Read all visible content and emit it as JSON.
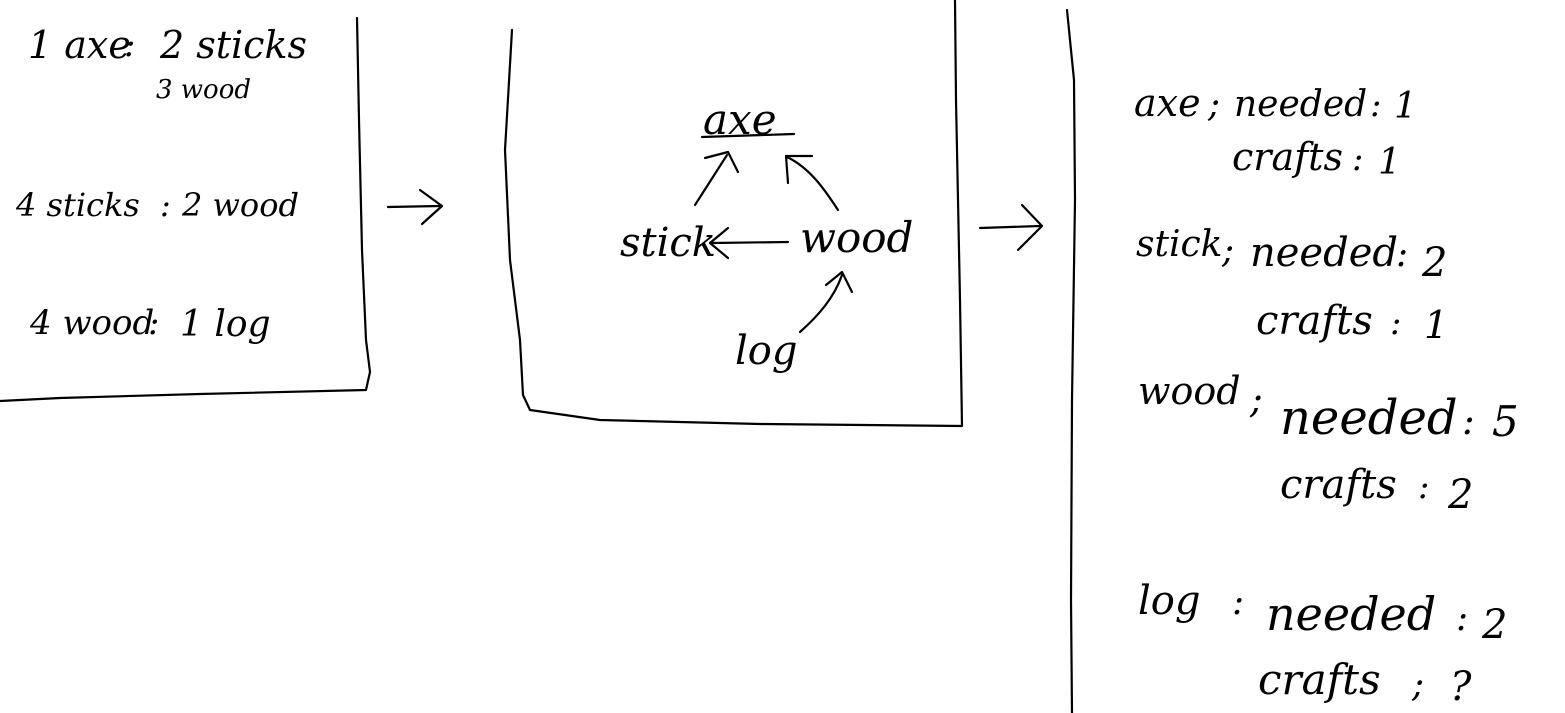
{
  "recipes_panel": {
    "r1_lhs": "1 axe",
    "r1_sep": ":",
    "r1_rhs_a": "2 sticks",
    "r1_rhs_b": "3 wood",
    "r2_lhs": "4 sticks",
    "r2_sep": ":",
    "r2_rhs": "2 wood",
    "r3_lhs": "4 wood",
    "r3_sep": ":",
    "r3_rhs": "1 log"
  },
  "graph_panel": {
    "nodes": {
      "axe": "axe",
      "stick": "stick",
      "wood": "wood",
      "log": "log"
    }
  },
  "results_panel": {
    "items": [
      {
        "name": "axe",
        "sep": ";",
        "needed_label": "needed",
        "needed_sep": ":",
        "needed_value": "1",
        "crafts_label": "crafts",
        "crafts_sep": ":",
        "crafts_value": "1"
      },
      {
        "name": "stick",
        "sep": ";",
        "needed_label": "needed",
        "needed_sep": ":",
        "needed_value": "2",
        "crafts_label": "crafts",
        "crafts_sep": ":",
        "crafts_value": "1"
      },
      {
        "name": "wood",
        "sep": ";",
        "needed_label": "needed",
        "needed_sep": ":",
        "needed_value": "5",
        "crafts_label": "crafts",
        "crafts_sep": ":",
        "crafts_value": "2"
      },
      {
        "name": "log",
        "sep": ":",
        "needed_label": "needed",
        "needed_sep": ":",
        "needed_value": "2",
        "crafts_label": "crafts",
        "crafts_sep": ";",
        "crafts_value": "?"
      }
    ]
  },
  "colors": {
    "ink": "#000000",
    "background": "#ffffff"
  }
}
